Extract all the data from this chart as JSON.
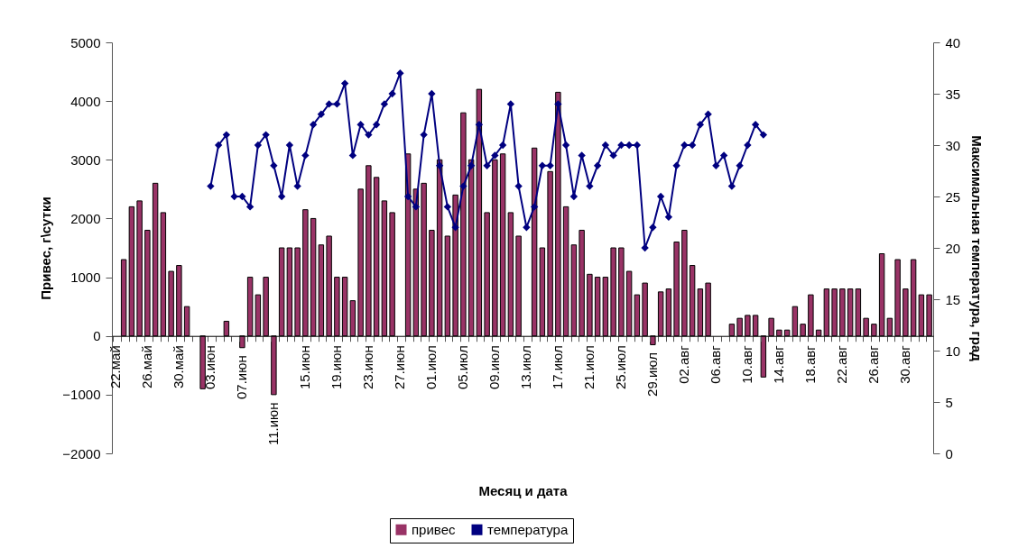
{
  "chart_data": {
    "type": "bar",
    "xlabel": "Месяц и дата",
    "ylabel": "Привес, г\\сутки",
    "y2label": "Максимальная температура, град",
    "categories": [
      "22.май",
      null,
      null,
      null,
      "26.май",
      null,
      null,
      null,
      "30.май",
      null,
      null,
      null,
      "03.июн",
      null,
      null,
      null,
      "07.июн",
      null,
      null,
      null,
      "11.июн",
      null,
      null,
      null,
      "15.июн",
      null,
      null,
      null,
      "19.июн",
      null,
      null,
      null,
      "23.июн",
      null,
      null,
      null,
      "27.июн",
      null,
      null,
      null,
      "01.июл",
      null,
      null,
      null,
      "05.июл",
      null,
      null,
      null,
      "09.июл",
      null,
      null,
      null,
      "13.июл",
      null,
      null,
      null,
      "17.июл",
      null,
      null,
      null,
      "21.июл",
      null,
      null,
      null,
      "25.июл",
      null,
      null,
      null,
      "29.июл",
      null,
      null,
      null,
      "02.авг",
      null,
      null,
      null,
      "06.авг",
      null,
      null,
      null,
      "10.авг",
      null,
      null,
      null,
      "14.авг",
      null,
      null,
      null,
      "18.авг",
      null,
      null,
      null,
      "22.авг",
      null,
      null,
      null,
      "26.авг",
      null,
      null,
      null,
      "30.авг",
      null,
      null,
      null
    ],
    "series": [
      {
        "name": "привес",
        "color": "#993366",
        "values": [
          null,
          1300,
          2200,
          2300,
          1800,
          2600,
          2100,
          1100,
          1200,
          500,
          null,
          -900,
          null,
          null,
          250,
          null,
          -200,
          1000,
          700,
          1000,
          -1000,
          1500,
          1500,
          1500,
          2150,
          2000,
          1550,
          1700,
          1000,
          1000,
          600,
          2500,
          2900,
          2700,
          2300,
          2100,
          null,
          3100,
          2500,
          2600,
          1800,
          3000,
          1700,
          2400,
          3800,
          3000,
          4200,
          2100,
          3000,
          3100,
          2100,
          1700,
          null,
          3200,
          1500,
          2800,
          4150,
          2200,
          1550,
          1800,
          1050,
          1000,
          1000,
          1500,
          1500,
          1100,
          700,
          900,
          -150,
          750,
          800,
          1600,
          1800,
          1200,
          800,
          900,
          null,
          null,
          200,
          300,
          350,
          350,
          -700,
          300,
          100,
          100,
          500,
          200,
          700,
          100,
          800,
          800,
          800,
          800,
          800,
          300,
          200,
          1400,
          300,
          1300,
          800,
          1300,
          700,
          700
        ]
      },
      {
        "name": "температура",
        "type": "line",
        "axis": "y2",
        "color": "#000080",
        "values": [
          null,
          null,
          null,
          null,
          null,
          null,
          null,
          null,
          null,
          null,
          null,
          null,
          26,
          30,
          31,
          25,
          25,
          24,
          30,
          31,
          28,
          25,
          30,
          26,
          29,
          32,
          33,
          34,
          34,
          36,
          29,
          32,
          31,
          32,
          34,
          35,
          37,
          25,
          24,
          31,
          35,
          28,
          24,
          22,
          26,
          28,
          32,
          28,
          29,
          30,
          34,
          26,
          22,
          24,
          28,
          28,
          34,
          30,
          25,
          29,
          26,
          28,
          30,
          29,
          30,
          30,
          30,
          20,
          22,
          25,
          23,
          28,
          30,
          30,
          32,
          33,
          28,
          29,
          26,
          28,
          30,
          32,
          31,
          null,
          null,
          null,
          null,
          null,
          null,
          null,
          null,
          null,
          null,
          null,
          null,
          null,
          null,
          null,
          null,
          null,
          null,
          null,
          null,
          null
        ]
      }
    ],
    "ylim": [
      -2000,
      5000
    ],
    "yticks": [
      -2000,
      -1000,
      0,
      1000,
      2000,
      3000,
      4000,
      5000
    ],
    "y2lim": [
      0,
      40
    ],
    "y2ticks": [
      0,
      5,
      10,
      15,
      20,
      25,
      30,
      35,
      40
    ],
    "marker": "diamond",
    "legend": "bottom"
  }
}
